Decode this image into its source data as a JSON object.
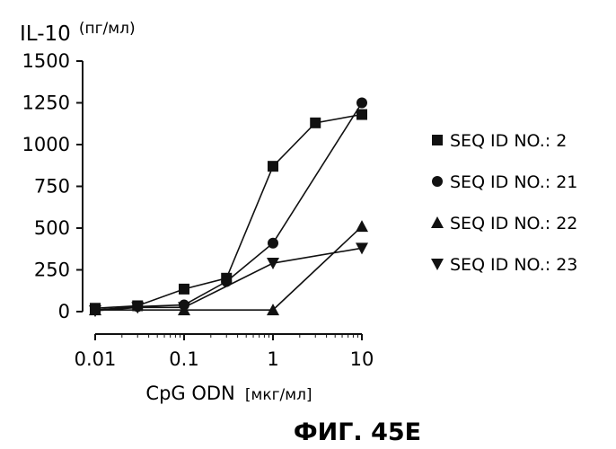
{
  "chart_data": {
    "type": "line",
    "title": "",
    "ylabel": "IL-10",
    "ylabel_unit": "(пг/мл)",
    "xlabel": "CpG ODN",
    "xlabel_unit": "[мкг/мл]",
    "x_scale": "log",
    "xlim": [
      0.01,
      10
    ],
    "ylim": [
      0,
      1500
    ],
    "x_ticks": [
      0.01,
      0.1,
      1,
      10
    ],
    "x_tick_labels": [
      "0.01",
      "0.1",
      "1",
      "10"
    ],
    "y_ticks": [
      0,
      250,
      500,
      750,
      1000,
      1250,
      1500
    ],
    "y_tick_labels": [
      "0",
      "250",
      "500",
      "750",
      "1000",
      "1250",
      "1500"
    ],
    "grid": false,
    "legend_position": "right",
    "series": [
      {
        "name": "SEQ ID NO.: 2",
        "marker": "square",
        "x": [
          0.01,
          0.03,
          0.1,
          0.3,
          1,
          3,
          10
        ],
        "y": [
          20,
          35,
          135,
          200,
          870,
          1130,
          1180
        ]
      },
      {
        "name": "SEQ ID NO.: 21",
        "marker": "circle",
        "x": [
          0.01,
          0.03,
          0.1,
          0.3,
          1,
          10
        ],
        "y": [
          10,
          30,
          40,
          180,
          410,
          1250
        ]
      },
      {
        "name": "SEQ ID NO.: 22",
        "marker": "triangle-up",
        "x": [
          0.01,
          0.1,
          1,
          10
        ],
        "y": [
          10,
          10,
          10,
          510
        ]
      },
      {
        "name": "SEQ ID NO.: 23",
        "marker": "triangle-down",
        "x": [
          0.01,
          0.03,
          0.1,
          1,
          10
        ],
        "y": [
          5,
          25,
          25,
          290,
          380
        ]
      }
    ]
  },
  "figure_label": "ФИГ. 45E"
}
